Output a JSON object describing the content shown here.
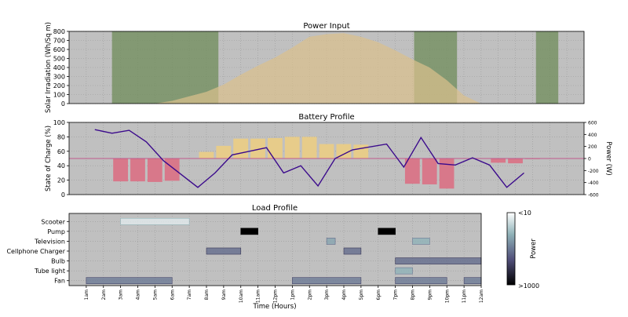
{
  "colors": {
    "plot_bg": "#c0c0c0",
    "solar_fill": "#d9bf8c",
    "shade": "#6f8c5a",
    "charge_bar": "#e7cc8a",
    "discharge_bar": "#d8788a",
    "soc_line": "#3b0a8c",
    "zero_line": "#c05a8c"
  },
  "chart_data": [
    {
      "type": "area",
      "title": "Power Input",
      "ylabel": "Solar Irradiation (Wh/Sq m)",
      "ylim": [
        0,
        800
      ],
      "yticks": [
        0,
        100,
        200,
        300,
        400,
        500,
        600,
        700,
        800
      ],
      "x": [
        0,
        3,
        5,
        6,
        7,
        8,
        9,
        10,
        11,
        12,
        13,
        14,
        15,
        16,
        17,
        18,
        19,
        20,
        21,
        22,
        23,
        24
      ],
      "values": [
        0,
        0,
        0,
        30,
        80,
        130,
        210,
        320,
        420,
        510,
        620,
        740,
        770,
        780,
        740,
        680,
        590,
        490,
        400,
        260,
        90,
        0
      ],
      "shaded_intervals": [
        [
          2.5,
          8.7
        ],
        [
          20.1,
          22.6
        ],
        [
          27.2,
          28.5
        ]
      ],
      "grid": true
    },
    {
      "type": "bar",
      "title": "Battery Profile",
      "ylabel": "State of Charge (%)",
      "y2label": "Power (W)",
      "ylim": [
        0,
        100
      ],
      "yticks": [
        0,
        20,
        40,
        60,
        80,
        100
      ],
      "y2lim": [
        -600,
        600
      ],
      "y2ticks": [
        600,
        400,
        200,
        0,
        -200,
        -400,
        -600
      ],
      "hours": [
        1,
        2,
        3,
        4,
        5,
        6,
        7,
        8,
        9,
        10,
        11,
        12,
        13,
        14,
        15,
        16,
        17,
        18,
        19,
        20,
        21,
        22,
        23,
        24,
        25,
        26,
        27,
        28,
        29,
        30
      ],
      "power": [
        0,
        0,
        -380,
        -380,
        -390,
        -370,
        0,
        110,
        210,
        330,
        330,
        340,
        360,
        360,
        240,
        240,
        230,
        0,
        0,
        -420,
        -430,
        -500,
        0,
        0,
        -70,
        -80,
        -10,
        0,
        0,
        0
      ],
      "soc": [
        90,
        85,
        89,
        73,
        47,
        10,
        30,
        55,
        60,
        65,
        30,
        40,
        12,
        50,
        62,
        70,
        38,
        79,
        43,
        41,
        51,
        41,
        10,
        30
      ],
      "soc_x": [
        2,
        3,
        4,
        5,
        6,
        8,
        9,
        10,
        11,
        12,
        13,
        14,
        15,
        16,
        17,
        19,
        20,
        21,
        22,
        23,
        24,
        25,
        26,
        27
      ],
      "grid": true
    },
    {
      "type": "heatmap",
      "title": "Load Profile",
      "xlabel": "Time (Hours)",
      "xticks": [
        "1am",
        "2am",
        "3am",
        "4am",
        "5am",
        "6am",
        "7am",
        "8am",
        "9am",
        "10am",
        "11am",
        "12pm",
        "1pm",
        "2pm",
        "3pm",
        "4pm",
        "5pm",
        "6pm",
        "7pm",
        "8pm",
        "9pm",
        "10pm",
        "11pm",
        "12am"
      ],
      "categories": [
        "Scooter",
        "Pump",
        "Television",
        "Cellphone Charger",
        "Bulb",
        "Tube light",
        "Fan"
      ],
      "segments": [
        {
          "row": "Scooter",
          "start": 3,
          "end": 7,
          "level": 0.08
        },
        {
          "row": "Pump",
          "start": 10,
          "end": 11,
          "level": 1.0
        },
        {
          "row": "Pump",
          "start": 18,
          "end": 19,
          "level": 1.0
        },
        {
          "row": "Television",
          "start": 15,
          "end": 15.5,
          "level": 0.35
        },
        {
          "row": "Television",
          "start": 20,
          "end": 21,
          "level": 0.3
        },
        {
          "row": "Cellphone Charger",
          "start": 8,
          "end": 10,
          "level": 0.55
        },
        {
          "row": "Cellphone Charger",
          "start": 16,
          "end": 17,
          "level": 0.55
        },
        {
          "row": "Bulb",
          "start": 19,
          "end": 24,
          "level": 0.55
        },
        {
          "row": "Tube light",
          "start": 19,
          "end": 20,
          "level": 0.3
        },
        {
          "row": "Fan",
          "start": 1,
          "end": 6,
          "level": 0.5
        },
        {
          "row": "Fan",
          "start": 13,
          "end": 17,
          "level": 0.5
        },
        {
          "row": "Fan",
          "start": 19,
          "end": 22,
          "level": 0.5
        },
        {
          "row": "Fan",
          "start": 23,
          "end": 24,
          "level": 0.5
        }
      ],
      "colorbar": {
        "label": "Power",
        "top_label": "<10",
        "bottom_label": ">1000"
      }
    }
  ]
}
